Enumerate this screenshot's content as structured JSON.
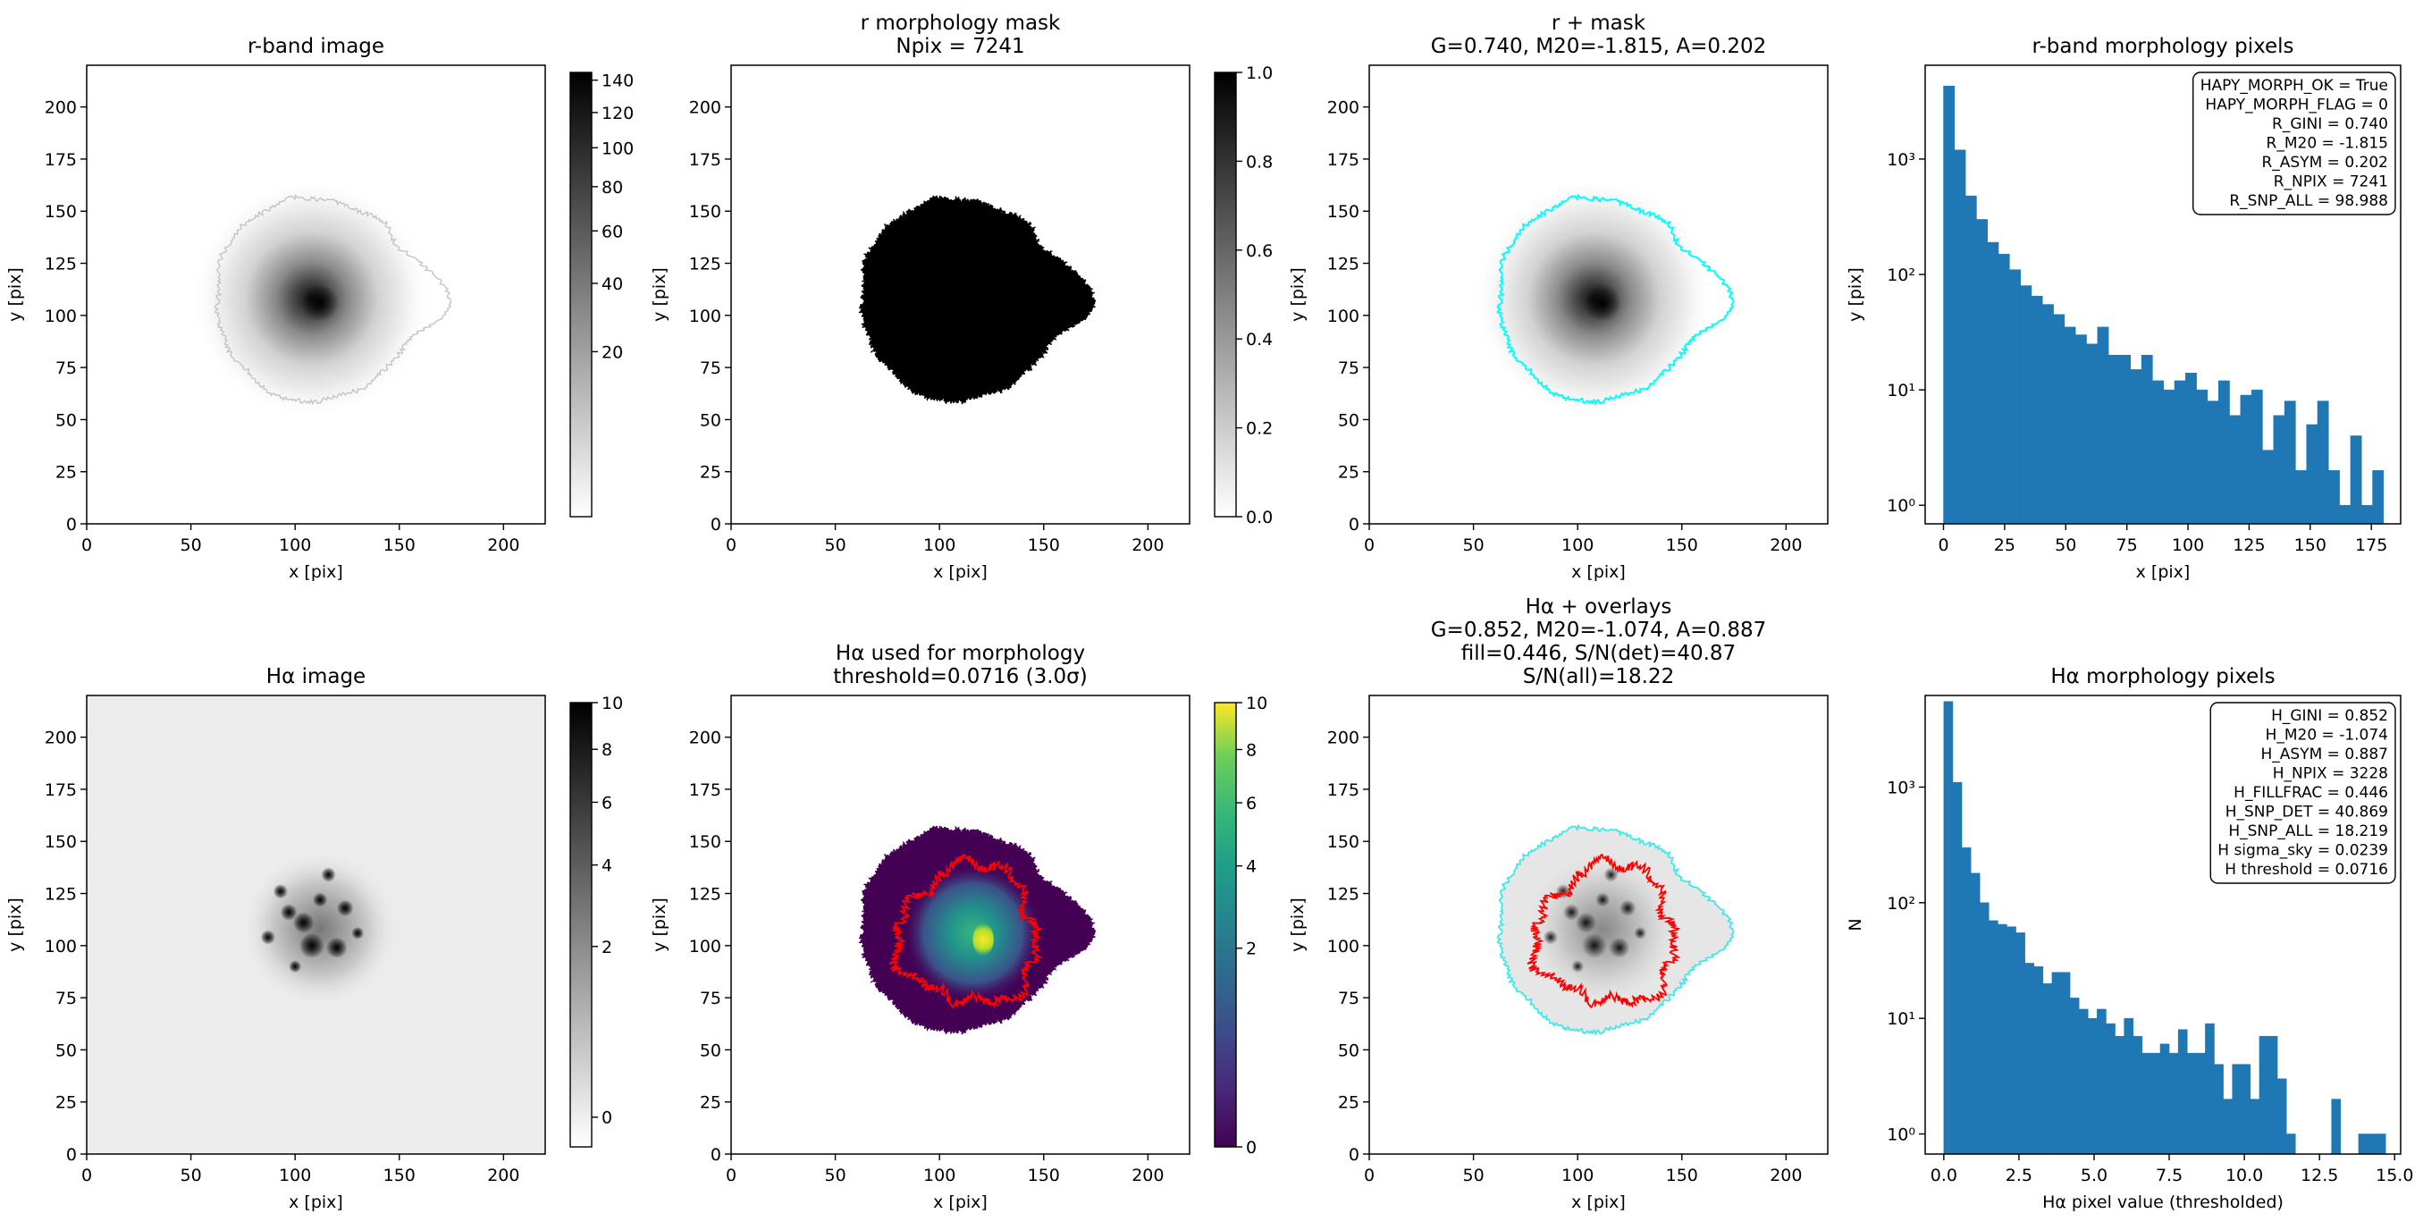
{
  "chart_data": [
    {
      "type": "image",
      "title": [
        "r-band image"
      ],
      "xlabel": "x [pix]",
      "ylabel": "y [pix]",
      "xlim": [
        0,
        220
      ],
      "ylim": [
        0,
        220
      ],
      "xticks": [
        0,
        50,
        100,
        150,
        200
      ],
      "yticks": [
        0,
        25,
        50,
        75,
        100,
        125,
        150,
        175,
        200
      ],
      "colorbar": {
        "cmap": "gray_r",
        "scale": "sqrt",
        "clim": [
          0,
          145
        ],
        "ticks": [
          20,
          40,
          60,
          80,
          100,
          120,
          140
        ]
      }
    },
    {
      "type": "image",
      "title": [
        "r morphology mask",
        "Npix = 7241"
      ],
      "xlabel": "x [pix]",
      "ylabel": "y [pix]",
      "xlim": [
        0,
        220
      ],
      "ylim": [
        0,
        220
      ],
      "xticks": [
        0,
        50,
        100,
        150,
        200
      ],
      "yticks": [
        0,
        25,
        50,
        75,
        100,
        125,
        150,
        175,
        200
      ],
      "colorbar": {
        "cmap": "gray_r",
        "scale": "linear",
        "clim": [
          0,
          1
        ],
        "ticks": [
          {
            "value": 0,
            "label": "0.0"
          },
          0.2,
          0.4,
          0.6,
          0.8,
          {
            "value": 1,
            "label": "1.0"
          }
        ]
      }
    },
    {
      "type": "image",
      "title": [
        "r + mask",
        "G=0.740, M20=-1.815, A=0.202"
      ],
      "xlabel": "x [pix]",
      "ylabel": "y [pix]",
      "xlim": [
        0,
        220
      ],
      "ylim": [
        0,
        220
      ],
      "xticks": [
        0,
        50,
        100,
        150,
        200
      ],
      "yticks": [
        0,
        25,
        50,
        75,
        100,
        125,
        150,
        175,
        200
      ]
    },
    {
      "type": "histogram",
      "title": [
        "r-band morphology pixels"
      ],
      "xlabel": "x [pix]",
      "ylabel": "y [pix]",
      "color": "#1f77b4",
      "bins": [
        0,
        4.5,
        9,
        13.5,
        18,
        22.5,
        27,
        31.5,
        36,
        40.5,
        45,
        49.5,
        54,
        58.5,
        63,
        67.5,
        72,
        76.5,
        81,
        85.5,
        90,
        94.5,
        99,
        103.5,
        108,
        112.5,
        117,
        121.5,
        126,
        130.5,
        135,
        139.5,
        144,
        148.5,
        153,
        157.5,
        162,
        166.5,
        171,
        175.5,
        180
      ],
      "values": [
        4300,
        1200,
        480,
        300,
        190,
        150,
        110,
        80,
        65,
        55,
        45,
        35,
        30,
        25,
        35,
        20,
        20,
        15,
        20,
        12,
        10,
        12,
        14,
        10,
        8,
        12,
        6,
        9,
        10,
        3,
        6,
        8,
        2,
        5,
        8,
        2,
        1,
        4,
        1,
        2
      ],
      "xlim": [
        -7.5,
        187
      ],
      "xticks": [
        0,
        25,
        50,
        75,
        100,
        125,
        150,
        175
      ],
      "ylog": true,
      "ylim": [
        0.69,
        6500
      ],
      "yticks": [
        {
          "value": 1,
          "label": "10⁰"
        },
        {
          "value": 10,
          "label": "10¹"
        },
        {
          "value": 100,
          "label": "10²"
        },
        {
          "value": 1000,
          "label": "10³"
        }
      ],
      "textbox": [
        "HAPY_MORPH_OK = True",
        "HAPY_MORPH_FLAG = 0",
        "R_GINI = 0.740",
        "R_M20 = -1.815",
        "R_ASYM = 0.202",
        "R_NPIX = 7241",
        "R_SNP_ALL = 98.988"
      ]
    },
    {
      "type": "image",
      "title": [
        "Hα image"
      ],
      "xlabel": "x [pix]",
      "ylabel": "y [pix]",
      "xlim": [
        0,
        220
      ],
      "ylim": [
        0,
        220
      ],
      "xticks": [
        0,
        50,
        100,
        150,
        200
      ],
      "yticks": [
        0,
        25,
        50,
        75,
        100,
        125,
        150,
        175,
        200
      ],
      "colorbar": {
        "cmap": "gray_r",
        "scale": "sqrt",
        "clim": [
          -0.045,
          10
        ],
        "ticks": [
          0,
          2,
          4,
          6,
          8,
          10
        ]
      }
    },
    {
      "type": "image",
      "title": [
        "Hα used for morphology",
        "threshold=0.0716 (3.0σ)"
      ],
      "xlabel": "x [pix]",
      "ylabel": "y [pix]",
      "xlim": [
        0,
        220
      ],
      "ylim": [
        0,
        220
      ],
      "xticks": [
        0,
        50,
        100,
        150,
        200
      ],
      "yticks": [
        0,
        25,
        50,
        75,
        100,
        125,
        150,
        175,
        200
      ],
      "colorbar": {
        "cmap": "viridis",
        "scale": "sqrt",
        "clim": [
          0,
          10
        ],
        "ticks": [
          0,
          2,
          4,
          6,
          8,
          10
        ]
      }
    },
    {
      "type": "image",
      "title": [
        "Hα + overlays",
        "G=0.852, M20=-1.074, A=0.887",
        "fill=0.446, S/N(det)=40.87",
        "S/N(all)=18.22"
      ],
      "xlabel": "x [pix]",
      "ylabel": "y [pix]",
      "xlim": [
        0,
        220
      ],
      "ylim": [
        0,
        220
      ],
      "xticks": [
        0,
        50,
        100,
        150,
        200
      ],
      "yticks": [
        0,
        25,
        50,
        75,
        100,
        125,
        150,
        175,
        200
      ]
    },
    {
      "type": "histogram",
      "title": [
        "Hα morphology pixels"
      ],
      "xlabel": "Hα pixel value (thresholded)",
      "ylabel": "N",
      "color": "#1f77b4",
      "bins": [
        0,
        0.3,
        0.6,
        0.9,
        1.2,
        1.5,
        1.8,
        2.1,
        2.4,
        2.7,
        3,
        3.3,
        3.6,
        3.9,
        4.2,
        4.5,
        4.8,
        5.1,
        5.4,
        5.7,
        6,
        6.3,
        6.6,
        6.9,
        7.2,
        7.5,
        7.8,
        8.1,
        8.4,
        8.7,
        9,
        9.3,
        9.6,
        9.9,
        10.2,
        10.5,
        10.8,
        11.1,
        11.4,
        11.7,
        12,
        12.3,
        12.6,
        12.9,
        13.2,
        13.5,
        13.8,
        14.1,
        14.4,
        14.7
      ],
      "values": [
        5500,
        1100,
        300,
        180,
        100,
        70,
        65,
        62,
        55,
        30,
        28,
        20,
        25,
        25,
        15,
        12,
        10,
        12,
        9,
        7,
        10,
        7,
        5,
        5,
        6,
        5,
        8,
        5,
        5,
        9,
        4,
        2,
        4,
        4,
        2,
        7,
        7,
        3,
        1,
        0,
        0,
        0,
        0,
        2,
        0,
        0,
        1,
        1,
        1
      ],
      "xlim": [
        -0.62,
        15.2
      ],
      "xticks": [
        {
          "value": 0,
          "label": "0.0"
        },
        2.5,
        {
          "value": 5,
          "label": "5.0"
        },
        7.5,
        {
          "value": 10,
          "label": "10.0"
        },
        12.5,
        {
          "value": 15,
          "label": "15.0"
        }
      ],
      "ylog": true,
      "ylim": [
        0.67,
        6200
      ],
      "yticks": [
        {
          "value": 1,
          "label": "10⁰"
        },
        {
          "value": 10,
          "label": "10¹"
        },
        {
          "value": 100,
          "label": "10²"
        },
        {
          "value": 1000,
          "label": "10³"
        }
      ],
      "textbox": [
        "H_GINI = 0.852",
        "H_M20 = -1.074",
        "H_ASYM = 0.887",
        "H_NPIX = 3228",
        "H_FILLFRAC = 0.446",
        "H_SNP_DET = 40.869",
        "H_SNP_ALL = 18.219",
        "H sigma_sky = 0.0239",
        "H threshold = 0.0716"
      ]
    }
  ]
}
